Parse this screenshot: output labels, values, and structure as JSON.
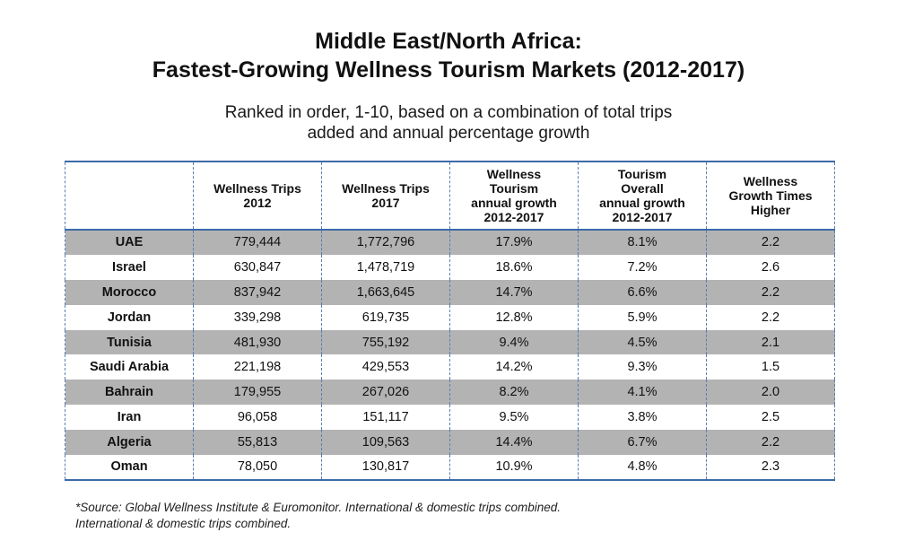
{
  "title": {
    "line1": "Middle East/North Africa:",
    "line2": "Fastest-Growing Wellness Tourism Markets (2012-2017)"
  },
  "subtitle": {
    "line1": "Ranked in order, 1-10, based on a combination of total trips",
    "line2": "added and annual percentage growth"
  },
  "table": {
    "headers": [
      "",
      "Wellness Trips 2012",
      "Wellness Trips 2017",
      "Wellness Tourism annual growth 2012-2017",
      "Tourism Overall annual growth 2012-2017",
      "Wellness Growth Times Higher"
    ],
    "header_lines": [
      [],
      [
        "Wellness Trips",
        "2012"
      ],
      [
        "Wellness Trips",
        "2017"
      ],
      [
        "Wellness",
        "Tourism",
        "annual growth",
        "2012-2017"
      ],
      [
        "Tourism",
        "Overall",
        "annual growth",
        "2012-2017"
      ],
      [
        "Wellness",
        "Growth Times",
        "Higher"
      ]
    ],
    "rows": [
      [
        "UAE",
        "779,444",
        "1,772,796",
        "17.9%",
        "8.1%",
        "2.2"
      ],
      [
        "Israel",
        "630,847",
        "1,478,719",
        "18.6%",
        "7.2%",
        "2.6"
      ],
      [
        "Morocco",
        "837,942",
        "1,663,645",
        "14.7%",
        "6.6%",
        "2.2"
      ],
      [
        "Jordan",
        "339,298",
        "619,735",
        "12.8%",
        "5.9%",
        "2.2"
      ],
      [
        "Tunisia",
        "481,930",
        "755,192",
        "9.4%",
        "4.5%",
        "2.1"
      ],
      [
        "Saudi Arabia",
        "221,198",
        "429,553",
        "14.2%",
        "9.3%",
        "1.5"
      ],
      [
        "Bahrain",
        "179,955",
        "267,026",
        "8.2%",
        "4.1%",
        "2.0"
      ],
      [
        "Iran",
        "96,058",
        "151,117",
        "9.5%",
        "3.8%",
        "2.5"
      ],
      [
        "Algeria",
        "55,813",
        "109,563",
        "14.4%",
        "6.7%",
        "2.2"
      ],
      [
        "Oman",
        "78,050",
        "130,817",
        "10.9%",
        "4.8%",
        "2.3"
      ]
    ]
  },
  "footnote": {
    "line1": "*Source: Global Wellness Institute & Euromonitor. International & domestic trips combined.",
    "line2": "International & domestic trips combined."
  },
  "colors": {
    "shaded_row": "#b3b3b3",
    "border": "#3c6aa8"
  }
}
